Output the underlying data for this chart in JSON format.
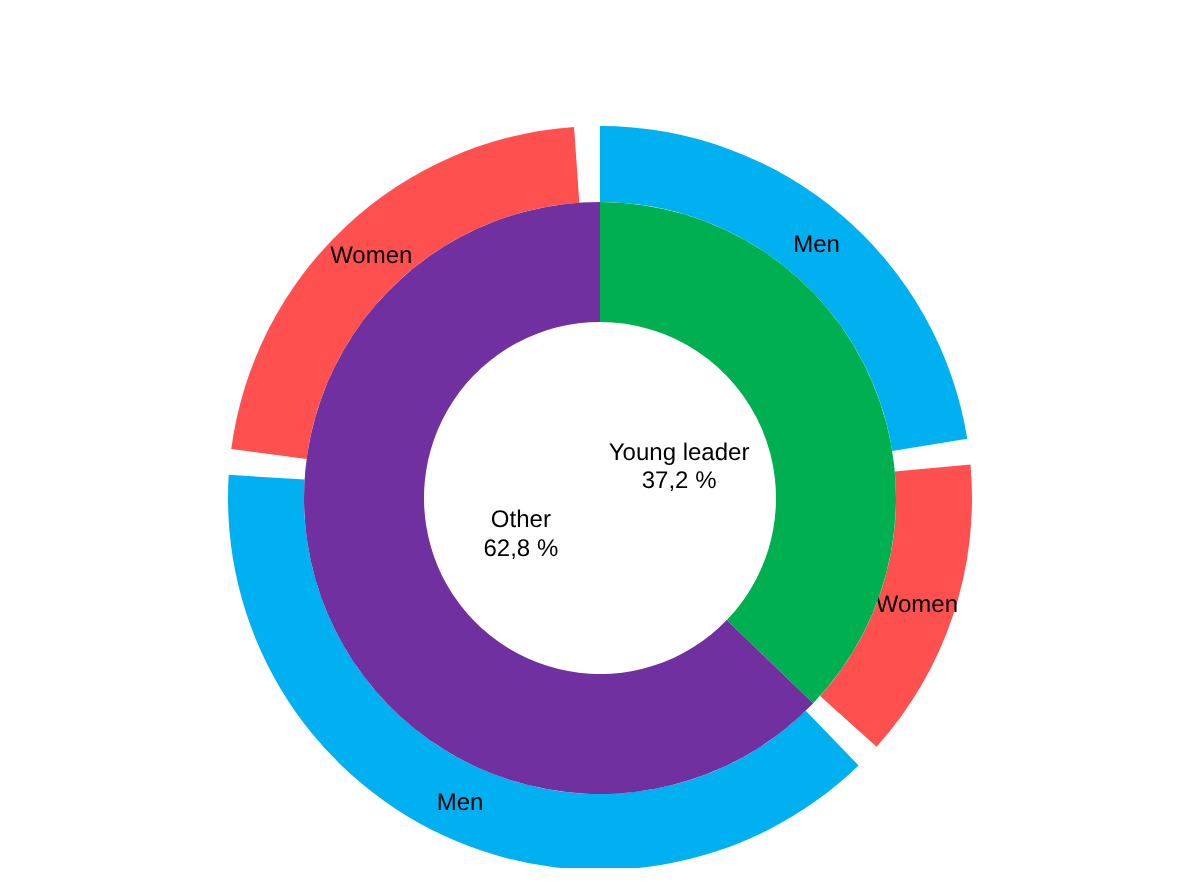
{
  "chart_data": [
    {
      "type": "donut",
      "categories": [
        "Young leader",
        "Other"
      ],
      "values": [
        37.2,
        62.8
      ],
      "value_labels": [
        "37,2 %",
        "62,8 %"
      ],
      "colors": [
        "#00b050",
        "#7030a0"
      ]
    },
    {
      "type": "donut",
      "categories": [
        "Men",
        "Women",
        "Men",
        "Women"
      ],
      "values": [
        23.5,
        13.7,
        40,
        22.8
      ],
      "colors": [
        "#00b0f0",
        "#ff5050",
        "#00b0f0",
        "#ff5050"
      ]
    }
  ]
}
